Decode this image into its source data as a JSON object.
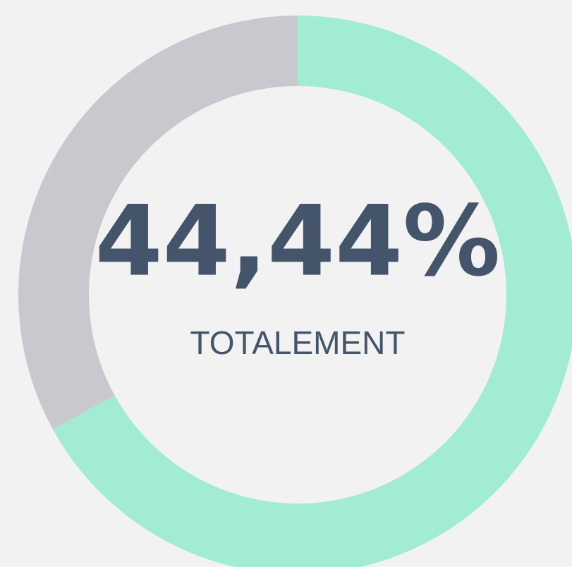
{
  "chart_data": {
    "type": "donut",
    "values": [
      67,
      33
    ],
    "colors": [
      "#a1ecd3",
      "#c9c8ce"
    ],
    "center_text": "44,44%",
    "center_subtext": "TOTALEMENT"
  }
}
